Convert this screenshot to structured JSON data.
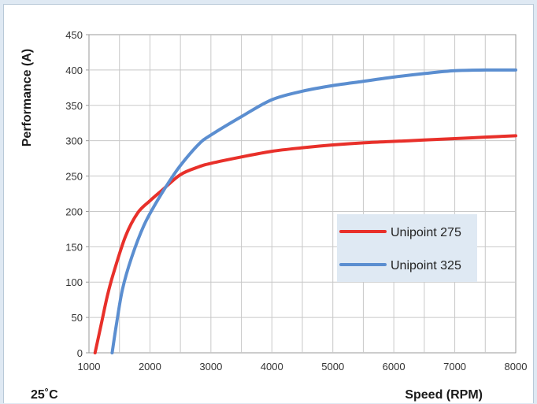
{
  "chart_data": {
    "type": "line",
    "xlabel": "Speed (RPM)",
    "ylabel": "Performance (A)",
    "note": "25˚C",
    "xlim": [
      1000,
      8000
    ],
    "ylim": [
      0,
      450
    ],
    "x_ticks": [
      1000,
      2000,
      3000,
      4000,
      5000,
      6000,
      7000,
      8000
    ],
    "y_ticks": [
      0,
      50,
      100,
      150,
      200,
      250,
      300,
      350,
      400,
      450
    ],
    "x_minor_step": 500,
    "grid": true,
    "legend_position": "right-middle",
    "series": [
      {
        "name": "Unipoint 275",
        "color": "#e8302a",
        "x": [
          1100,
          1200,
          1300,
          1400,
          1600,
          1800,
          2000,
          2200,
          2500,
          2800,
          3000,
          3500,
          4000,
          4500,
          5000,
          5500,
          6000,
          6500,
          7000,
          7500,
          8000
        ],
        "y": [
          0,
          40,
          80,
          112,
          165,
          198,
          215,
          230,
          252,
          263,
          268,
          277,
          285,
          290,
          294,
          297,
          299,
          301,
          303,
          305,
          307
        ]
      },
      {
        "name": "Unipoint 325",
        "color": "#5b8ed0",
        "x": [
          1380,
          1450,
          1550,
          1700,
          1900,
          2100,
          2300,
          2500,
          2800,
          3000,
          3500,
          4000,
          4500,
          5000,
          5500,
          6000,
          6500,
          7000,
          7500,
          8000
        ],
        "y": [
          0,
          40,
          90,
          135,
          180,
          212,
          240,
          265,
          295,
          308,
          334,
          358,
          370,
          378,
          384,
          390,
          395,
          399,
          400,
          400
        ]
      }
    ]
  }
}
